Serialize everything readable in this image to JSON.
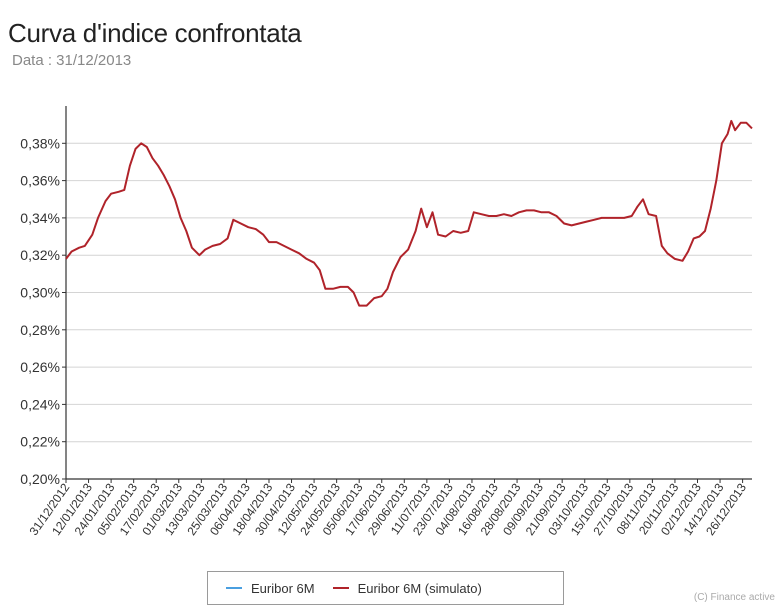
{
  "header": {
    "title": "Curva d'indice confrontata",
    "subtitle": "Data : 31/12/2013"
  },
  "legend": {
    "items": [
      {
        "label": "Euribor 6M",
        "color": "#4a9fe0"
      },
      {
        "label": "Euribor 6M (simulato)",
        "color": "#b0232a"
      }
    ]
  },
  "credit": "(C) Finance active",
  "chart_data": {
    "type": "line",
    "title": "Curva d'indice confrontata",
    "subtitle": "Data : 31/12/2013",
    "ylim": [
      0.2,
      0.4
    ],
    "grid": true,
    "y_ticks": [
      "0,20%",
      "0,22%",
      "0,24%",
      "0,26%",
      "0,28%",
      "0,30%",
      "0,32%",
      "0,34%",
      "0,36%",
      "0,38%"
    ],
    "y_tick_values": [
      0.2,
      0.22,
      0.24,
      0.26,
      0.28,
      0.3,
      0.32,
      0.34,
      0.36,
      0.38
    ],
    "x_range": [
      "31/12/2012",
      "31/12/2013"
    ],
    "x_ticks": [
      "31/12/2012",
      "12/01/2013",
      "24/01/2013",
      "05/02/2013",
      "17/02/2013",
      "01/03/2013",
      "13/03/2013",
      "25/03/2013",
      "06/04/2013",
      "18/04/2013",
      "30/04/2013",
      "12/05/2013",
      "24/05/2013",
      "05/06/2013",
      "17/06/2013",
      "29/06/2013",
      "11/07/2013",
      "23/07/2013",
      "04/08/2013",
      "16/08/2013",
      "28/08/2013",
      "09/09/2013",
      "21/09/2013",
      "03/10/2013",
      "15/10/2013",
      "27/10/2013",
      "08/11/2013",
      "20/11/2013",
      "02/12/2013",
      "14/12/2013",
      "26/12/2013"
    ],
    "legend_position": "bottom",
    "series": [
      {
        "name": "Euribor 6M (simulato)",
        "color": "#b0232a",
        "points": [
          [
            "31/12/2012",
            0.318
          ],
          [
            "03/01/2013",
            0.322
          ],
          [
            "07/01/2013",
            0.324
          ],
          [
            "10/01/2013",
            0.325
          ],
          [
            "14/01/2013",
            0.331
          ],
          [
            "17/01/2013",
            0.34
          ],
          [
            "21/01/2013",
            0.349
          ],
          [
            "24/01/2013",
            0.353
          ],
          [
            "28/01/2013",
            0.354
          ],
          [
            "31/01/2013",
            0.355
          ],
          [
            "03/02/2013",
            0.368
          ],
          [
            "06/02/2013",
            0.377
          ],
          [
            "09/02/2013",
            0.38
          ],
          [
            "12/02/2013",
            0.378
          ],
          [
            "15/02/2013",
            0.372
          ],
          [
            "18/02/2013",
            0.368
          ],
          [
            "21/02/2013",
            0.363
          ],
          [
            "24/02/2013",
            0.357
          ],
          [
            "27/02/2013",
            0.35
          ],
          [
            "02/03/2013",
            0.34
          ],
          [
            "05/03/2013",
            0.333
          ],
          [
            "08/03/2013",
            0.324
          ],
          [
            "12/03/2013",
            0.32
          ],
          [
            "15/03/2013",
            0.323
          ],
          [
            "19/03/2013",
            0.325
          ],
          [
            "23/03/2013",
            0.326
          ],
          [
            "27/03/2013",
            0.329
          ],
          [
            "30/03/2013",
            0.339
          ],
          [
            "03/04/2013",
            0.337
          ],
          [
            "07/04/2013",
            0.335
          ],
          [
            "11/04/2013",
            0.334
          ],
          [
            "15/04/2013",
            0.331
          ],
          [
            "18/04/2013",
            0.327
          ],
          [
            "22/04/2013",
            0.327
          ],
          [
            "26/04/2013",
            0.325
          ],
          [
            "30/04/2013",
            0.323
          ],
          [
            "04/05/2013",
            0.321
          ],
          [
            "08/05/2013",
            0.318
          ],
          [
            "12/05/2013",
            0.316
          ],
          [
            "15/05/2013",
            0.312
          ],
          [
            "18/05/2013",
            0.302
          ],
          [
            "22/05/2013",
            0.302
          ],
          [
            "26/05/2013",
            0.303
          ],
          [
            "30/05/2013",
            0.303
          ],
          [
            "02/06/2013",
            0.3
          ],
          [
            "05/06/2013",
            0.293
          ],
          [
            "09/06/2013",
            0.293
          ],
          [
            "13/06/2013",
            0.297
          ],
          [
            "17/06/2013",
            0.298
          ],
          [
            "20/06/2013",
            0.302
          ],
          [
            "23/06/2013",
            0.311
          ],
          [
            "27/06/2013",
            0.319
          ],
          [
            "01/07/2013",
            0.323
          ],
          [
            "05/07/2013",
            0.333
          ],
          [
            "08/07/2013",
            0.345
          ],
          [
            "11/07/2013",
            0.335
          ],
          [
            "14/07/2013",
            0.343
          ],
          [
            "17/07/2013",
            0.331
          ],
          [
            "21/07/2013",
            0.33
          ],
          [
            "25/07/2013",
            0.333
          ],
          [
            "29/07/2013",
            0.332
          ],
          [
            "02/08/2013",
            0.333
          ],
          [
            "05/08/2013",
            0.343
          ],
          [
            "09/08/2013",
            0.342
          ],
          [
            "13/08/2013",
            0.341
          ],
          [
            "17/08/2013",
            0.341
          ],
          [
            "21/08/2013",
            0.342
          ],
          [
            "25/08/2013",
            0.341
          ],
          [
            "29/08/2013",
            0.343
          ],
          [
            "02/09/2013",
            0.344
          ],
          [
            "06/09/2013",
            0.344
          ],
          [
            "10/09/2013",
            0.343
          ],
          [
            "14/09/2013",
            0.343
          ],
          [
            "18/09/2013",
            0.341
          ],
          [
            "22/09/2013",
            0.337
          ],
          [
            "26/09/2013",
            0.336
          ],
          [
            "30/09/2013",
            0.337
          ],
          [
            "04/10/2013",
            0.338
          ],
          [
            "08/10/2013",
            0.339
          ],
          [
            "12/10/2013",
            0.34
          ],
          [
            "16/10/2013",
            0.34
          ],
          [
            "20/10/2013",
            0.34
          ],
          [
            "24/10/2013",
            0.34
          ],
          [
            "28/10/2013",
            0.341
          ],
          [
            "31/10/2013",
            0.346
          ],
          [
            "03/11/2013",
            0.35
          ],
          [
            "06/11/2013",
            0.342
          ],
          [
            "10/11/2013",
            0.341
          ],
          [
            "13/11/2013",
            0.325
          ],
          [
            "16/11/2013",
            0.321
          ],
          [
            "20/11/2013",
            0.318
          ],
          [
            "24/11/2013",
            0.317
          ],
          [
            "27/11/2013",
            0.322
          ],
          [
            "30/11/2013",
            0.329
          ],
          [
            "03/12/2013",
            0.33
          ],
          [
            "06/12/2013",
            0.333
          ],
          [
            "09/12/2013",
            0.345
          ],
          [
            "12/12/2013",
            0.36
          ],
          [
            "15/12/2013",
            0.38
          ],
          [
            "18/12/2013",
            0.385
          ],
          [
            "20/12/2013",
            0.392
          ],
          [
            "22/12/2013",
            0.387
          ],
          [
            "25/12/2013",
            0.391
          ],
          [
            "28/12/2013",
            0.391
          ],
          [
            "31/12/2013",
            0.388
          ]
        ]
      }
    ]
  }
}
